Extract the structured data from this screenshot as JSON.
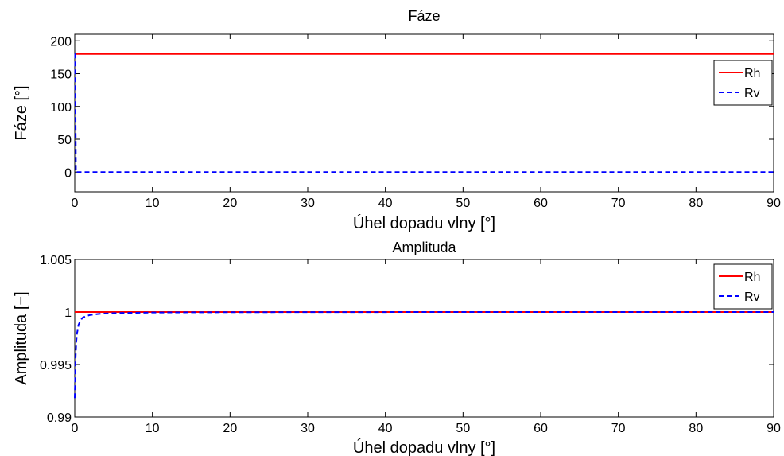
{
  "chart_data": [
    {
      "type": "line",
      "title": "Fáze",
      "xlabel": "Úhel dopadu vlny [°]",
      "ylabel": "Fáze [°]",
      "xlim": [
        0,
        90
      ],
      "ylim": [
        -30,
        210
      ],
      "xticks": [
        "0",
        "10",
        "20",
        "30",
        "40",
        "50",
        "60",
        "70",
        "80",
        "90"
      ],
      "yticks": [
        "0",
        "50",
        "100",
        "150",
        "200"
      ],
      "grid": false,
      "legend_position": "top-right",
      "series": [
        {
          "name": "Rh",
          "color": "#ff0000",
          "style": "solid",
          "x": [
            0,
            90
          ],
          "y": [
            180,
            180
          ]
        },
        {
          "name": "Rv",
          "color": "#0000ff",
          "style": "dashed",
          "x": [
            0,
            0.05,
            0.15,
            0.3,
            90
          ],
          "y": [
            180,
            180,
            0,
            0,
            0
          ]
        }
      ]
    },
    {
      "type": "line",
      "title": "Amplituda",
      "xlabel": "Úhel dopadu vlny [°]",
      "ylabel": "Amplituda [−]",
      "xlim": [
        0,
        90
      ],
      "ylim": [
        0.99,
        1.005
      ],
      "xticks": [
        "0",
        "10",
        "20",
        "30",
        "40",
        "50",
        "60",
        "70",
        "80",
        "90"
      ],
      "yticks": [
        "0.99",
        "0.995",
        "1",
        "1.005"
      ],
      "grid": false,
      "legend_position": "top-right",
      "series": [
        {
          "name": "Rh",
          "color": "#ff0000",
          "style": "solid",
          "x": [
            0,
            90
          ],
          "y": [
            1.0,
            1.0
          ]
        },
        {
          "name": "Rv",
          "color": "#0000ff",
          "style": "dashed",
          "x": [
            0.0,
            0.05,
            0.1,
            0.2,
            0.3,
            0.5,
            0.75,
            1.0,
            1.5,
            2.0,
            3.0,
            4.0,
            5.0,
            7.0,
            10.0,
            15.0,
            20.0,
            30.0,
            50.0,
            70.0,
            90.0
          ],
          "y": [
            0.9918,
            0.9935,
            0.9955,
            0.9972,
            0.998,
            0.9988,
            0.9992,
            0.99945,
            0.99962,
            0.99972,
            0.99981,
            0.99986,
            0.99989,
            0.99992,
            0.99995,
            0.99997,
            0.99998,
            0.99999,
            1.0,
            1.0,
            1.0
          ]
        }
      ]
    }
  ]
}
